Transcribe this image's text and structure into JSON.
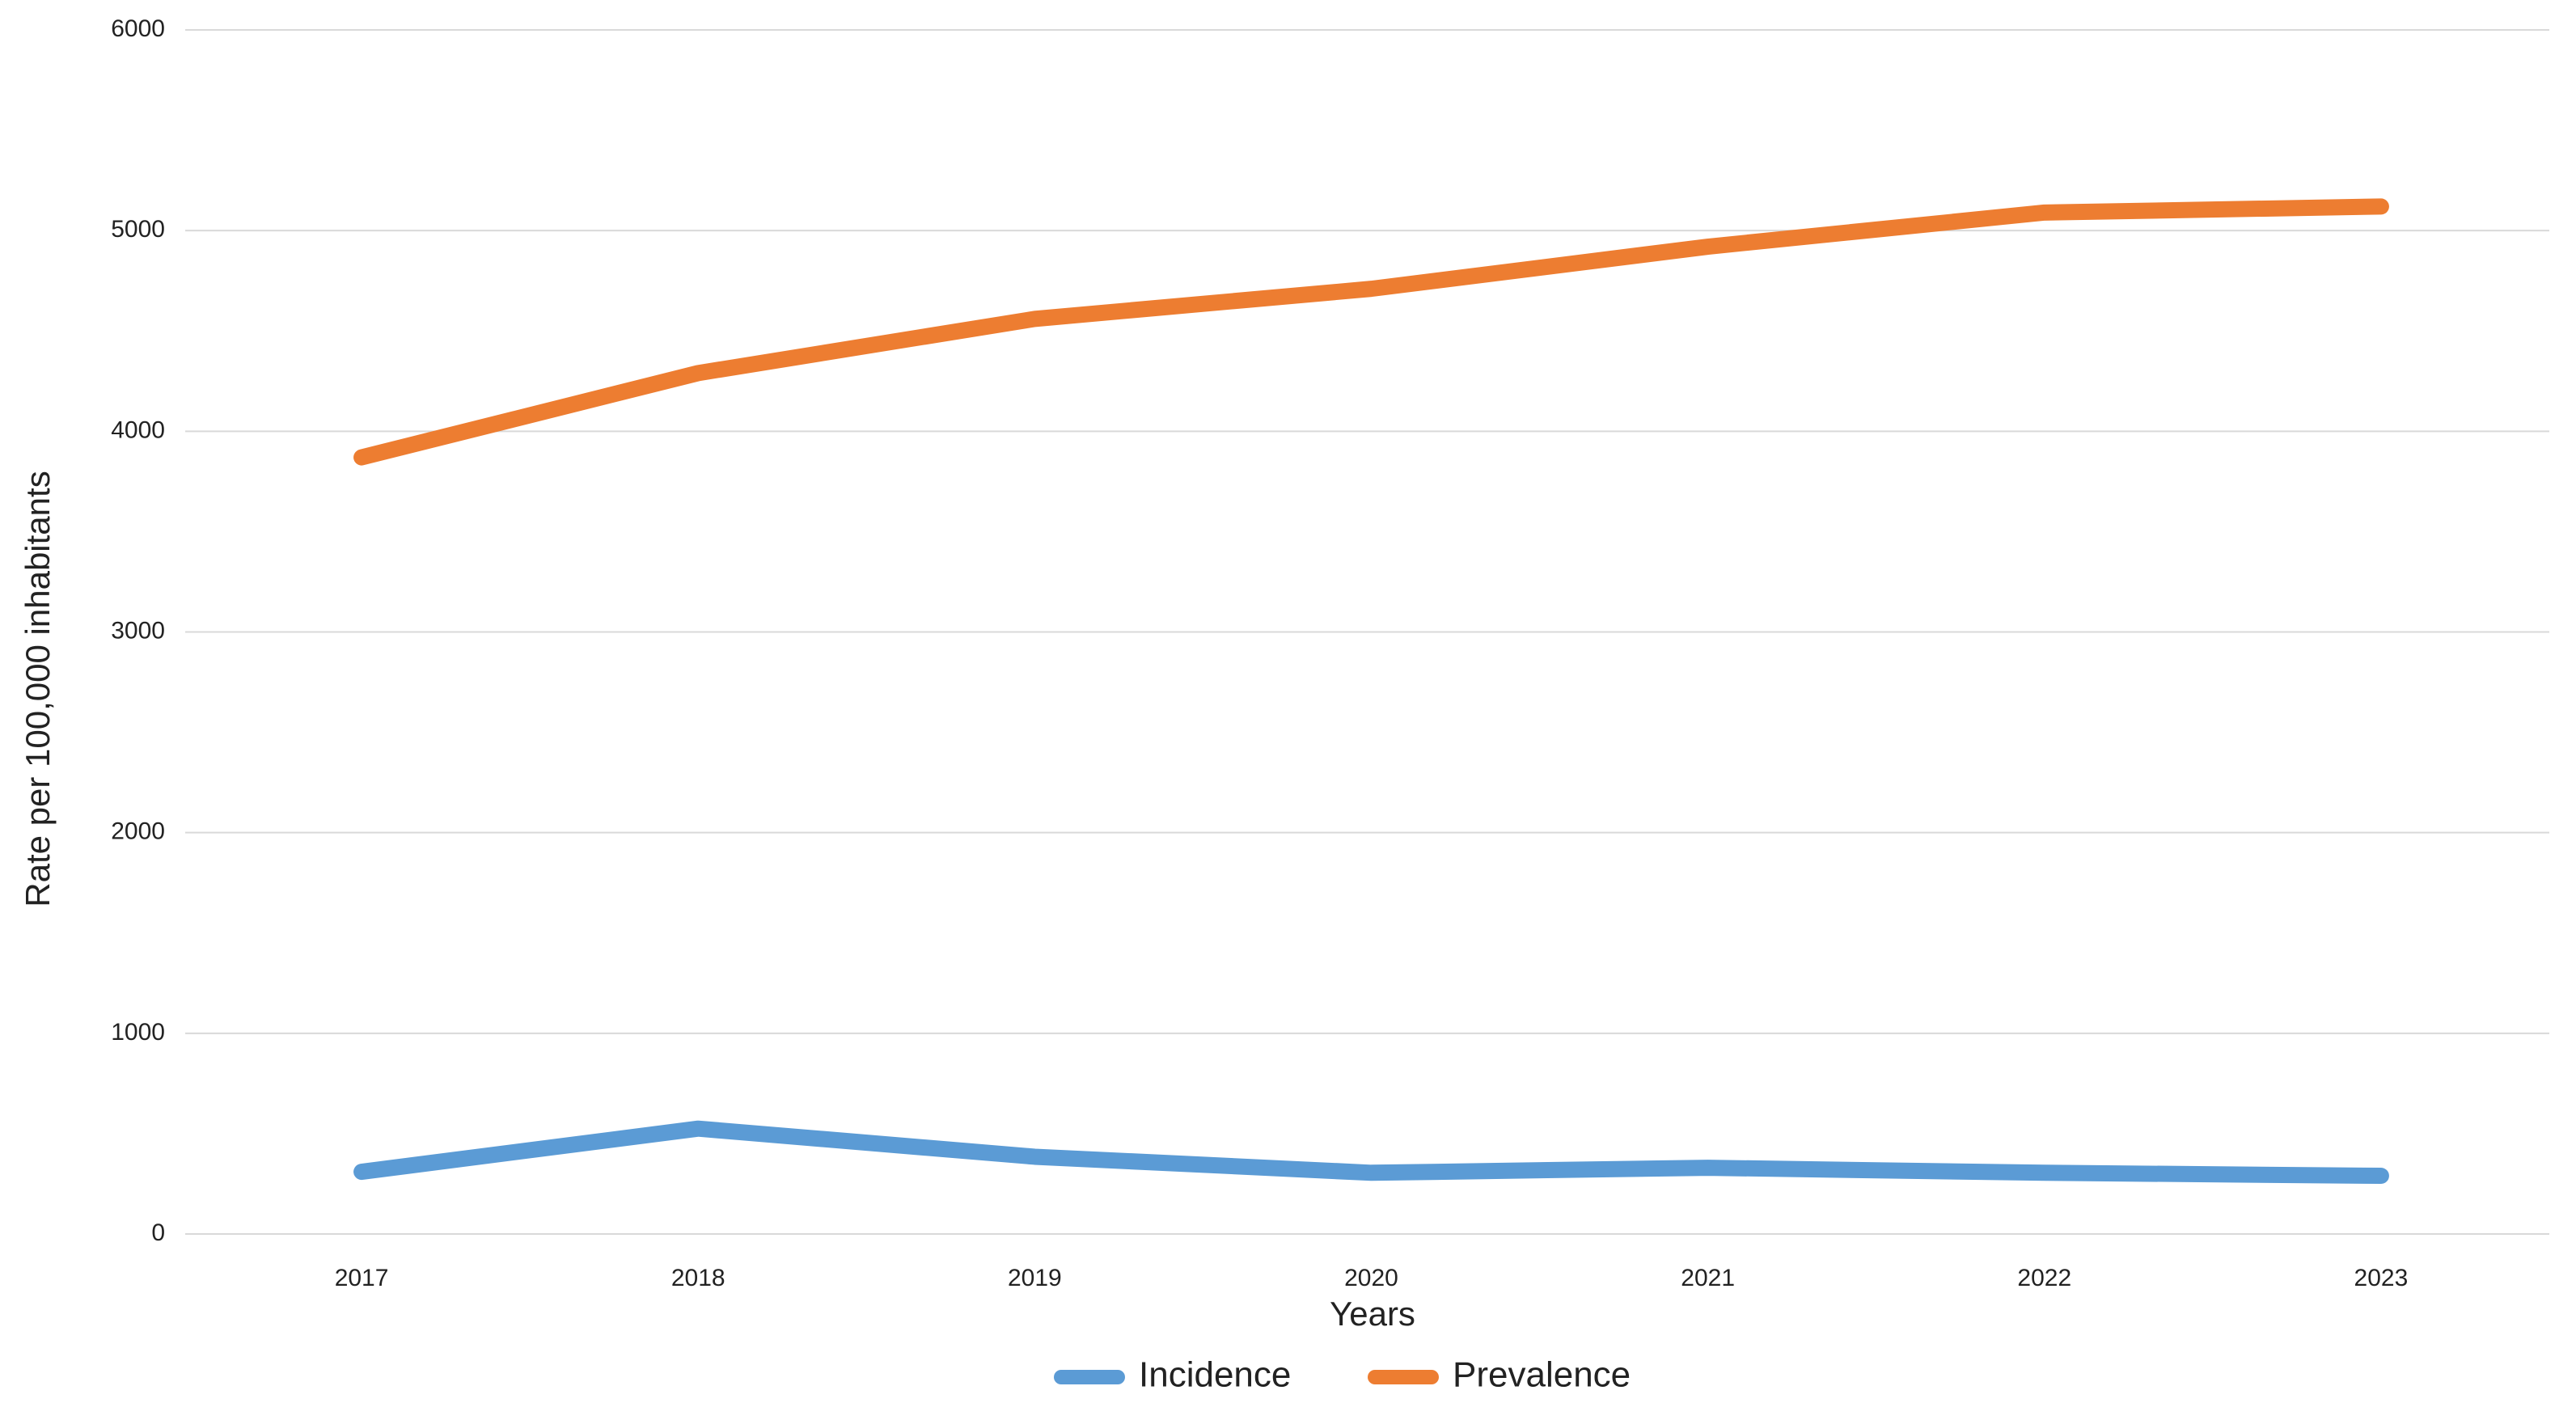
{
  "chart_data": {
    "type": "line",
    "x_label": "Years",
    "y_label": "Rate per 100,000 inhabitants",
    "categories": [
      "2017",
      "2018",
      "2019",
      "2020",
      "2021",
      "2022",
      "2023"
    ],
    "series": [
      {
        "name": "Incidence",
        "color": "#5b9bd5",
        "values": [
          310,
          525,
          385,
          305,
          330,
          305,
          290
        ]
      },
      {
        "name": "Prevalence",
        "color": "#ed7d31",
        "values": [
          3870,
          4290,
          4560,
          4710,
          4920,
          5090,
          5120
        ]
      }
    ],
    "ylim": [
      0,
      6000
    ],
    "yticks": [
      0,
      1000,
      2000,
      3000,
      4000,
      5000,
      6000
    ],
    "grid": true,
    "legend": "bottom"
  }
}
